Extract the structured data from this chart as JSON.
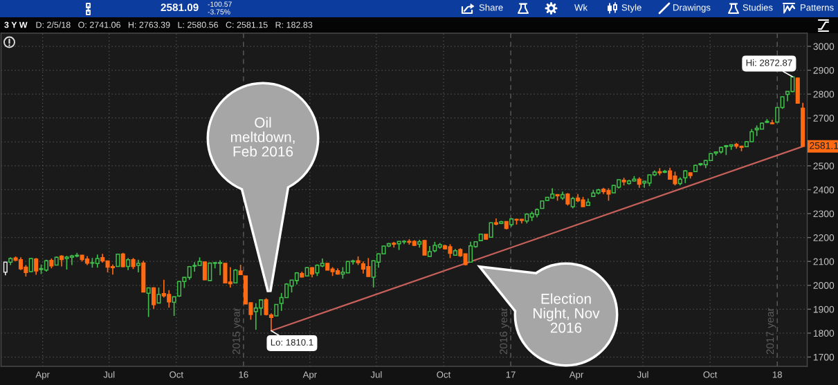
{
  "chart_data": {
    "type": "candlestick",
    "title": "3 Y W",
    "subtitle": "D: 2/5/18   O: 2741.06   H: 2763.39   L: 2580.56   C: 2581.15   R: 182.83",
    "x": [
      "2015-02-09",
      "2015-02-16",
      "2015-02-23",
      "2015-03-02",
      "2015-03-09",
      "2015-03-16",
      "2015-03-23",
      "2015-03-30",
      "2015-04-06",
      "2015-04-13",
      "2015-04-20",
      "2015-04-27",
      "2015-05-04",
      "2015-05-11",
      "2015-05-18",
      "2015-05-25",
      "2015-06-01",
      "2015-06-08",
      "2015-06-15",
      "2015-06-22",
      "2015-06-29",
      "2015-07-06",
      "2015-07-13",
      "2015-07-20",
      "2015-07-27",
      "2015-08-03",
      "2015-08-10",
      "2015-08-17",
      "2015-08-24",
      "2015-08-31",
      "2015-09-07",
      "2015-09-14",
      "2015-09-21",
      "2015-09-28",
      "2015-10-05",
      "2015-10-12",
      "2015-10-19",
      "2015-10-26",
      "2015-11-02",
      "2015-11-09",
      "2015-11-16",
      "2015-11-23",
      "2015-11-30",
      "2015-12-07",
      "2015-12-14",
      "2015-12-21",
      "2015-12-28",
      "2016-01-04",
      "2016-01-11",
      "2016-01-18",
      "2016-01-25",
      "2016-02-01",
      "2016-02-08",
      "2016-02-15",
      "2016-02-22",
      "2016-02-29",
      "2016-03-07",
      "2016-03-14",
      "2016-03-21",
      "2016-03-28",
      "2016-04-04",
      "2016-04-11",
      "2016-04-18",
      "2016-04-25",
      "2016-05-02",
      "2016-05-09",
      "2016-05-16",
      "2016-05-23",
      "2016-05-30",
      "2016-06-06",
      "2016-06-13",
      "2016-06-20",
      "2016-06-27",
      "2016-07-04",
      "2016-07-11",
      "2016-07-18",
      "2016-07-25",
      "2016-08-01",
      "2016-08-08",
      "2016-08-15",
      "2016-08-22",
      "2016-08-29",
      "2016-09-05",
      "2016-09-12",
      "2016-09-19",
      "2016-09-26",
      "2016-10-03",
      "2016-10-10",
      "2016-10-17",
      "2016-10-24",
      "2016-10-31",
      "2016-11-07",
      "2016-11-14",
      "2016-11-21",
      "2016-11-28",
      "2016-12-05",
      "2016-12-12",
      "2016-12-19",
      "2016-12-26",
      "2017-01-02",
      "2017-01-09",
      "2017-01-16",
      "2017-01-23",
      "2017-01-30",
      "2017-02-06",
      "2017-02-13",
      "2017-02-20",
      "2017-02-27",
      "2017-03-06",
      "2017-03-13",
      "2017-03-20",
      "2017-03-27",
      "2017-04-03",
      "2017-04-10",
      "2017-04-17",
      "2017-04-24",
      "2017-05-01",
      "2017-05-08",
      "2017-05-15",
      "2017-05-22",
      "2017-05-29",
      "2017-06-05",
      "2017-06-12",
      "2017-06-19",
      "2017-06-26",
      "2017-07-03",
      "2017-07-10",
      "2017-07-17",
      "2017-07-24",
      "2017-07-31",
      "2017-08-07",
      "2017-08-14",
      "2017-08-21",
      "2017-08-28",
      "2017-09-04",
      "2017-09-11",
      "2017-09-18",
      "2017-09-25",
      "2017-10-02",
      "2017-10-09",
      "2017-10-16",
      "2017-10-23",
      "2017-10-30",
      "2017-11-06",
      "2017-11-13",
      "2017-11-20",
      "2017-11-27",
      "2017-12-04",
      "2017-12-11",
      "2017-12-18",
      "2017-12-25",
      "2018-01-01",
      "2018-01-08",
      "2018-01-15",
      "2018-01-22",
      "2018-01-29",
      "2018-02-05"
    ],
    "ohlc": [
      [
        2055,
        2098,
        2042,
        2097
      ],
      [
        2097,
        2117,
        2085,
        2112
      ],
      [
        2114,
        2121,
        2102,
        2105
      ],
      [
        2107,
        2117,
        2064,
        2069
      ],
      [
        2076,
        2085,
        2037,
        2054
      ],
      [
        2057,
        2114,
        2054,
        2112
      ],
      [
        2110,
        2114,
        2044,
        2060
      ],
      [
        2066,
        2087,
        2047,
        2070
      ],
      [
        2064,
        2107,
        2057,
        2103
      ],
      [
        2104,
        2112,
        2071,
        2081
      ],
      [
        2085,
        2121,
        2084,
        2117
      ],
      [
        2122,
        2126,
        2079,
        2108
      ],
      [
        2112,
        2124,
        2066,
        2118
      ],
      [
        2117,
        2127,
        2085,
        2123
      ],
      [
        2122,
        2136,
        2117,
        2126
      ],
      [
        2126,
        2127,
        2100,
        2108
      ],
      [
        2110,
        2122,
        2085,
        2093
      ],
      [
        2093,
        2114,
        2074,
        2095
      ],
      [
        2091,
        2129,
        2074,
        2112
      ],
      [
        2116,
        2132,
        2095,
        2102
      ],
      [
        2102,
        2103,
        2054,
        2076
      ],
      [
        2078,
        2087,
        2045,
        2074
      ],
      [
        2079,
        2131,
        2078,
        2130
      ],
      [
        2131,
        2136,
        2075,
        2078
      ],
      [
        2079,
        2114,
        2064,
        2107
      ],
      [
        2107,
        2114,
        2068,
        2079
      ],
      [
        2083,
        2107,
        2054,
        2092
      ],
      [
        2093,
        2103,
        1971,
        1972
      ],
      [
        1967,
        1991,
        1868,
        1989
      ],
      [
        1989,
        1992,
        1902,
        1919
      ],
      [
        1926,
        1991,
        1924,
        1962
      ],
      [
        1965,
        2023,
        1949,
        1956
      ],
      [
        1962,
        1980,
        1907,
        1931
      ],
      [
        1929,
        1953,
        1872,
        1952
      ],
      [
        1955,
        2018,
        1952,
        2016
      ],
      [
        2016,
        2035,
        1989,
        2033
      ],
      [
        2033,
        2079,
        2023,
        2078
      ],
      [
        2080,
        2097,
        2057,
        2083
      ],
      [
        2083,
        2117,
        2082,
        2100
      ],
      [
        2098,
        2099,
        2022,
        2023
      ],
      [
        2020,
        2094,
        2019,
        2093
      ],
      [
        2092,
        2097,
        2071,
        2095
      ],
      [
        2092,
        2105,
        2042,
        2095
      ],
      [
        2092,
        2093,
        2009,
        2010
      ],
      [
        2014,
        2076,
        1991,
        2007
      ],
      [
        2010,
        2068,
        2009,
        2064
      ],
      [
        2060,
        2086,
        2044,
        2045
      ],
      [
        2039,
        2040,
        1921,
        1922
      ],
      [
        1927,
        1928,
        1856,
        1878
      ],
      [
        1890,
        1925,
        1814,
        1905
      ],
      [
        1905,
        1940,
        1874,
        1939
      ],
      [
        1939,
        1946,
        1874,
        1878
      ],
      [
        1876,
        1883,
        1810.1,
        1866
      ],
      [
        1872,
        1921,
        1871,
        1920
      ],
      [
        1924,
        1968,
        1893,
        1949
      ],
      [
        1949,
        2009,
        1948,
        2005
      ],
      [
        1997,
        2023,
        1970,
        2022
      ],
      [
        2020,
        2055,
        2004,
        2052
      ],
      [
        2049,
        2057,
        2033,
        2035
      ],
      [
        2039,
        2076,
        2037,
        2074
      ],
      [
        2074,
        2076,
        2033,
        2047
      ],
      [
        2052,
        2088,
        2039,
        2084
      ],
      [
        2081,
        2112,
        2076,
        2092
      ],
      [
        2092,
        2093,
        2063,
        2064
      ],
      [
        2068,
        2076,
        2039,
        2057
      ],
      [
        2061,
        2071,
        2045,
        2047
      ],
      [
        2047,
        2076,
        2028,
        2055
      ],
      [
        2052,
        2101,
        2051,
        2100
      ],
      [
        2099,
        2107,
        2087,
        2102
      ],
      [
        2103,
        2121,
        2085,
        2095
      ],
      [
        2090,
        2100,
        2049,
        2068
      ],
      [
        2078,
        2114,
        2036,
        2037
      ],
      [
        2034,
        2104,
        1991,
        2103
      ],
      [
        2097,
        2133,
        2074,
        2132
      ],
      [
        2132,
        2167,
        2131,
        2164
      ],
      [
        2164,
        2177,
        2160,
        2174
      ],
      [
        2176,
        2182,
        2158,
        2172
      ],
      [
        2174,
        2185,
        2148,
        2184
      ],
      [
        2182,
        2189,
        2172,
        2184
      ],
      [
        2184,
        2193,
        2170,
        2180
      ],
      [
        2184,
        2189,
        2165,
        2167
      ],
      [
        2172,
        2190,
        2158,
        2182
      ],
      [
        2187,
        2190,
        2126,
        2127
      ],
      [
        2121,
        2164,
        2119,
        2141
      ],
      [
        2145,
        2182,
        2138,
        2167
      ],
      [
        2160,
        2177,
        2153,
        2170
      ],
      [
        2165,
        2170,
        2150,
        2153
      ],
      [
        2161,
        2172,
        2114,
        2134
      ],
      [
        2126,
        2152,
        2125,
        2145
      ],
      [
        2150,
        2155,
        2119,
        2124
      ],
      [
        2132,
        2133,
        2083,
        2087
      ],
      [
        2097,
        2182,
        2095,
        2165
      ],
      [
        2162,
        2184,
        2157,
        2182
      ],
      [
        2187,
        2215,
        2185,
        2214
      ],
      [
        2213,
        2214,
        2191,
        2193
      ],
      [
        2201,
        2263,
        2199,
        2262
      ],
      [
        2262,
        2280,
        2251,
        2256
      ],
      [
        2259,
        2270,
        2256,
        2266
      ],
      [
        2267,
        2268,
        2234,
        2238
      ],
      [
        2254,
        2281,
        2246,
        2278
      ],
      [
        2276,
        2279,
        2254,
        2273
      ],
      [
        2276,
        2278,
        2259,
        2271
      ],
      [
        2269,
        2302,
        2259,
        2298
      ],
      [
        2286,
        2309,
        2269,
        2300
      ],
      [
        2296,
        2322,
        2284,
        2317
      ],
      [
        2322,
        2354,
        2320,
        2353
      ],
      [
        2355,
        2370,
        2353,
        2368
      ],
      [
        2365,
        2406,
        2363,
        2382
      ],
      [
        2380,
        2381,
        2354,
        2375
      ],
      [
        2365,
        2392,
        2357,
        2380
      ],
      [
        2382,
        2386,
        2334,
        2341
      ],
      [
        2329,
        2370,
        2322,
        2363
      ],
      [
        2365,
        2382,
        2348,
        2354
      ],
      [
        2357,
        2370,
        2328,
        2329
      ],
      [
        2334,
        2363,
        2333,
        2348
      ],
      [
        2372,
        2399,
        2371,
        2386
      ],
      [
        2386,
        2404,
        2380,
        2399
      ],
      [
        2402,
        2408,
        2382,
        2392
      ],
      [
        2396,
        2406,
        2354,
        2382
      ],
      [
        2387,
        2420,
        2386,
        2418
      ],
      [
        2411,
        2443,
        2405,
        2442
      ],
      [
        2440,
        2450,
        2418,
        2433
      ],
      [
        2426,
        2442,
        2421,
        2437
      ],
      [
        2437,
        2457,
        2434,
        2444
      ],
      [
        2444,
        2452,
        2408,
        2423
      ],
      [
        2428,
        2437,
        2408,
        2435
      ],
      [
        2428,
        2463,
        2415,
        2462
      ],
      [
        2462,
        2481,
        2457,
        2474
      ],
      [
        2475,
        2490,
        2460,
        2471
      ],
      [
        2473,
        2483,
        2469,
        2477
      ],
      [
        2479,
        2492,
        2442,
        2444
      ],
      [
        2457,
        2476,
        2418,
        2425
      ],
      [
        2426,
        2452,
        2418,
        2444
      ],
      [
        2450,
        2482,
        2428,
        2479
      ],
      [
        2471,
        2473,
        2447,
        2459
      ],
      [
        2476,
        2505,
        2475,
        2502
      ],
      [
        2505,
        2512,
        2500,
        2509
      ],
      [
        2505,
        2524,
        2490,
        2522
      ],
      [
        2522,
        2553,
        2521,
        2551
      ],
      [
        2553,
        2560,
        2543,
        2558
      ],
      [
        2558,
        2580,
        2551,
        2577
      ],
      [
        2580,
        2587,
        2545,
        2584
      ],
      [
        2582,
        2589,
        2567,
        2588
      ],
      [
        2590,
        2596,
        2572,
        2582
      ],
      [
        2582,
        2584,
        2561,
        2577
      ],
      [
        2580,
        2603,
        2579,
        2601
      ],
      [
        2601,
        2654,
        2600,
        2643
      ],
      [
        2651,
        2669,
        2625,
        2657
      ],
      [
        2654,
        2681,
        2653,
        2678
      ],
      [
        2682,
        2696,
        2678,
        2686
      ],
      [
        2680,
        2693,
        2675,
        2676
      ],
      [
        2683,
        2745,
        2682,
        2744
      ],
      [
        2744,
        2790,
        2738,
        2789
      ],
      [
        2799,
        2812,
        2770,
        2811
      ],
      [
        2811,
        2872.87,
        2808,
        2872
      ],
      [
        2867,
        2870,
        2760,
        2762
      ],
      [
        2741.06,
        2763.39,
        2580.56,
        2581.15
      ]
    ],
    "colors": [
      "#e6e6e6",
      "#3fbf4a",
      "#ff6a13",
      "#ff6a13",
      "#ff6a13",
      "#3fbf4a",
      "#ff6a13",
      "#3fbf4a",
      "#3fbf4a",
      "#ff6a13",
      "#3fbf4a",
      "#ff6a13",
      "#3fbf4a",
      "#3fbf4a",
      "#3fbf4a",
      "#ff6a13",
      "#ff6a13",
      "#3fbf4a",
      "#3fbf4a",
      "#ff6a13",
      "#ff6a13",
      "#ff6a13",
      "#3fbf4a",
      "#ff6a13",
      "#3fbf4a",
      "#ff6a13",
      "#3fbf4a",
      "#ff6a13",
      "#3fbf4a",
      "#ff6a13",
      "#3fbf4a",
      "#ff6a13",
      "#ff6a13",
      "#3fbf4a",
      "#3fbf4a",
      "#3fbf4a",
      "#3fbf4a",
      "#3fbf4a",
      "#3fbf4a",
      "#ff6a13",
      "#3fbf4a",
      "#3fbf4a",
      "#3fbf4a",
      "#ff6a13",
      "#ff6a13",
      "#3fbf4a",
      "#ff6a13",
      "#ff6a13",
      "#ff6a13",
      "#3fbf4a",
      "#3fbf4a",
      "#ff6a13",
      "#ff6a13",
      "#3fbf4a",
      "#3fbf4a",
      "#3fbf4a",
      "#3fbf4a",
      "#3fbf4a",
      "#ff6a13",
      "#3fbf4a",
      "#ff6a13",
      "#3fbf4a",
      "#3fbf4a",
      "#ff6a13",
      "#ff6a13",
      "#ff6a13",
      "#3fbf4a",
      "#3fbf4a",
      "#3fbf4a",
      "#ff6a13",
      "#ff6a13",
      "#ff6a13",
      "#3fbf4a",
      "#3fbf4a",
      "#3fbf4a",
      "#3fbf4a",
      "#ff6a13",
      "#3fbf4a",
      "#3fbf4a",
      "#ff6a13",
      "#ff6a13",
      "#3fbf4a",
      "#ff6a13",
      "#3fbf4a",
      "#3fbf4a",
      "#3fbf4a",
      "#ff6a13",
      "#ff6a13",
      "#3fbf4a",
      "#ff6a13",
      "#ff6a13",
      "#3fbf4a",
      "#3fbf4a",
      "#3fbf4a",
      "#ff6a13",
      "#3fbf4a",
      "#ff6a13",
      "#3fbf4a",
      "#ff6a13",
      "#3fbf4a",
      "#ff6a13",
      "#ff6a13",
      "#3fbf4a",
      "#3fbf4a",
      "#3fbf4a",
      "#3fbf4a",
      "#3fbf4a",
      "#3fbf4a",
      "#ff6a13",
      "#3fbf4a",
      "#ff6a13",
      "#3fbf4a",
      "#ff6a13",
      "#ff6a13",
      "#3fbf4a",
      "#3fbf4a",
      "#3fbf4a",
      "#ff6a13",
      "#ff6a13",
      "#3fbf4a",
      "#3fbf4a",
      "#ff6a13",
      "#3fbf4a",
      "#3fbf4a",
      "#ff6a13",
      "#3fbf4a",
      "#3fbf4a",
      "#3fbf4a",
      "#ff6a13",
      "#3fbf4a",
      "#ff6a13",
      "#ff6a13",
      "#3fbf4a",
      "#3fbf4a",
      "#ff6a13",
      "#3fbf4a",
      "#3fbf4a",
      "#3fbf4a",
      "#3fbf4a",
      "#3fbf4a",
      "#3fbf4a",
      "#3fbf4a",
      "#3fbf4a",
      "#ff6a13",
      "#ff6a13",
      "#3fbf4a",
      "#3fbf4a",
      "#3fbf4a",
      "#3fbf4a",
      "#3fbf4a",
      "#ff6a13",
      "#3fbf4a",
      "#3fbf4a",
      "#3fbf4a",
      "#3fbf4a",
      "#ff6a13",
      "#ff6a13"
    ],
    "series": [
      {
        "type": "line",
        "x": [
          "2016-02-08",
          "2018-02-05"
        ],
        "values": [
          1810,
          2581
        ],
        "color": "#c5605a"
      }
    ],
    "xlim": [
      "2015-02-03",
      "2018-02-11"
    ],
    "xticks": [
      {
        "value": "2015-04-01",
        "label": "Apr"
      },
      {
        "value": "2015-07-01",
        "label": "Jul"
      },
      {
        "value": "2015-10-01",
        "label": "Oct"
      },
      {
        "value": "2016-01-01",
        "label": "16"
      },
      {
        "value": "2016-04-01",
        "label": "Apr"
      },
      {
        "value": "2016-07-01",
        "label": "Jul"
      },
      {
        "value": "2016-10-01",
        "label": "Oct"
      },
      {
        "value": "2017-01-01",
        "label": "17"
      },
      {
        "value": "2017-04-01",
        "label": "Apr"
      },
      {
        "value": "2017-07-01",
        "label": "Jul"
      },
      {
        "value": "2017-10-01",
        "label": "Oct"
      },
      {
        "value": "2018-01-01",
        "label": "18"
      }
    ],
    "ylim": [
      1661,
      3055
    ],
    "yticks": [
      1700,
      1800,
      1900,
      2000,
      2100,
      2200,
      2300,
      2400,
      2500,
      {
        "value": 2600,
        "label": null
      },
      2700,
      2800,
      2900,
      3000
    ],
    "grid": true,
    "annotations": [
      "2581.09",
      "-100.57",
      "-3.75%",
      "Share",
      "Wk",
      "Style",
      "Drawings",
      "Studies",
      "Patterns",
      "2581.1",
      "2015 year",
      "2016 year",
      "2017 year",
      "Oil\nmeltdown,\nFeb 2016",
      "Election\nNight, Nov\n2016",
      {
        "text": "Hi: 2872.87",
        "x": "2018-01-22",
        "y": 2872.87
      },
      {
        "text": "Lo: 1810.1",
        "x": "2016-02-08",
        "y": 1810.1
      }
    ]
  }
}
